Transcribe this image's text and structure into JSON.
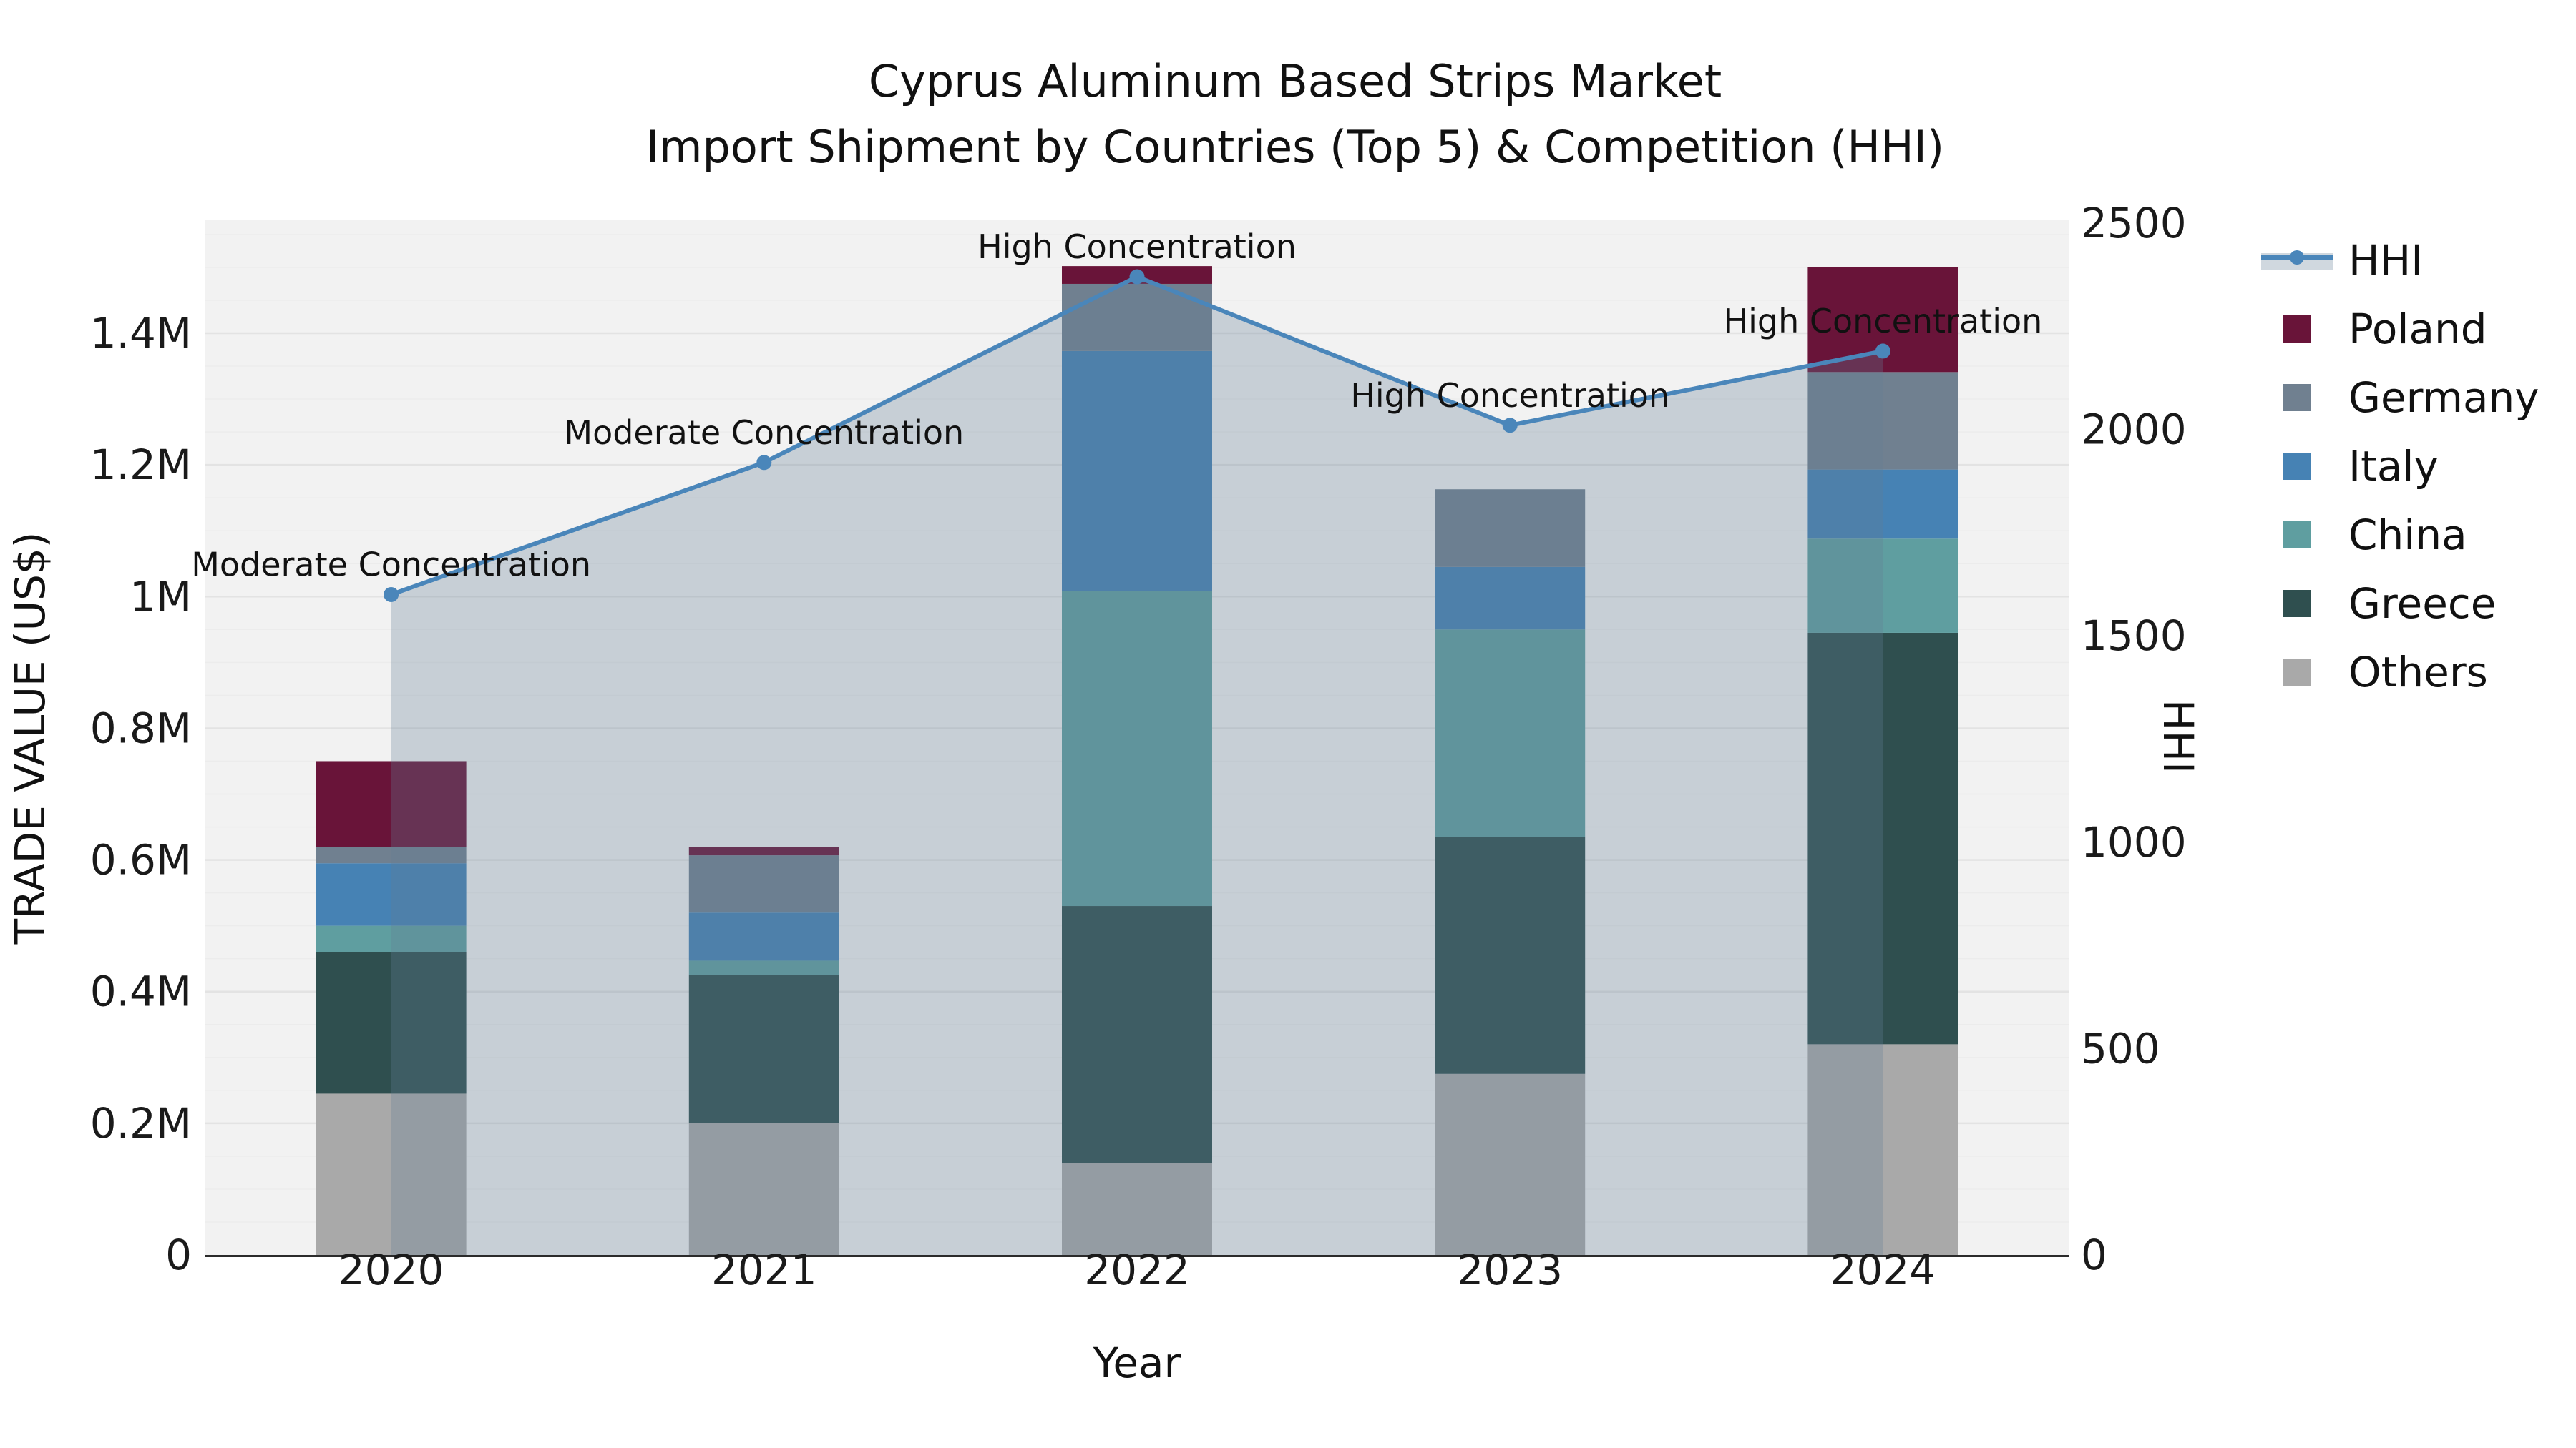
{
  "title": {
    "line1": "Cyprus Aluminum Based Strips Market",
    "line2": "Import Shipment by Countries (Top 5) & Competition (HHI)"
  },
  "axes": {
    "left": {
      "label": "TRADE VALUE (US$)",
      "unit": "M",
      "ticks": [
        {
          "value": 0.0,
          "label": "0"
        },
        {
          "value": 0.2,
          "label": "0.2M"
        },
        {
          "value": 0.4,
          "label": "0.4M"
        },
        {
          "value": 0.6,
          "label": "0.6M"
        },
        {
          "value": 0.8,
          "label": "0.8M"
        },
        {
          "value": 1.0,
          "label": "1M"
        },
        {
          "value": 1.2,
          "label": "1.2M"
        },
        {
          "value": 1.4,
          "label": "1.4M"
        }
      ]
    },
    "right": {
      "label": "HHI",
      "max": 2500,
      "ticks": [
        {
          "value": 0,
          "label": "0"
        },
        {
          "value": 500,
          "label": "500"
        },
        {
          "value": 1000,
          "label": "1000"
        },
        {
          "value": 1500,
          "label": "1500"
        },
        {
          "value": 2000,
          "label": "2000"
        },
        {
          "value": 2500,
          "label": "2500"
        }
      ]
    },
    "bottom": {
      "label": "Year"
    }
  },
  "legend": {
    "items": [
      {
        "label": "HHI",
        "type": "line",
        "color": "#4a86ba"
      },
      {
        "label": "Poland",
        "type": "swatch",
        "color": "#691439"
      },
      {
        "label": "Germany",
        "type": "swatch",
        "color": "#708090"
      },
      {
        "label": "Italy",
        "type": "swatch",
        "color": "#4682b4"
      },
      {
        "label": "China",
        "type": "swatch",
        "color": "#5f9ea0"
      },
      {
        "label": "Greece",
        "type": "swatch",
        "color": "#2f4f4f"
      },
      {
        "label": "Others",
        "type": "swatch",
        "color": "#a9a9a9"
      }
    ]
  },
  "chart_data": {
    "type": "bar",
    "stacked": true,
    "title": "Cyprus Aluminum Based Strips Market — Import Shipment by Countries (Top 5) & Competition (HHI)",
    "categories": [
      "2020",
      "2021",
      "2022",
      "2023",
      "2024"
    ],
    "xlabel": "Year",
    "ylabel_left": "TRADE VALUE (US$)",
    "ylabel_right": "HHI",
    "unit": "millions of US$",
    "ylim_left": [
      0,
      1.57
    ],
    "ylim_right": [
      0,
      2500
    ],
    "grid": true,
    "legend_position": "right",
    "series": [
      {
        "name": "Others",
        "color": "#a9a9a9",
        "values": [
          0.245,
          0.2,
          0.14,
          0.275,
          0.32
        ]
      },
      {
        "name": "Greece",
        "color": "#2f4f4f",
        "values": [
          0.215,
          0.225,
          0.39,
          0.36,
          0.625
        ]
      },
      {
        "name": "China",
        "color": "#5f9ea0",
        "values": [
          0.04,
          0.022,
          0.478,
          0.315,
          0.143
        ]
      },
      {
        "name": "Italy",
        "color": "#4682b4",
        "values": [
          0.095,
          0.073,
          0.365,
          0.095,
          0.105
        ]
      },
      {
        "name": "Germany",
        "color": "#708090",
        "values": [
          0.025,
          0.087,
          0.102,
          0.118,
          0.148
        ]
      },
      {
        "name": "Poland",
        "color": "#691439",
        "values": [
          0.13,
          0.013,
          0.027,
          0.0,
          0.16
        ]
      }
    ],
    "line_series": {
      "name": "HHI",
      "axis": "right",
      "color": "#4a86ba",
      "values": [
        1600,
        1920,
        2370,
        2010,
        2190
      ],
      "area_fill": "rgba(100,125,150,0.30)"
    },
    "annotations": [
      {
        "category": "2020",
        "text": "Moderate Concentration"
      },
      {
        "category": "2021",
        "text": "Moderate Concentration"
      },
      {
        "category": "2022",
        "text": "High Concentration"
      },
      {
        "category": "2023",
        "text": "High Concentration"
      },
      {
        "category": "2024",
        "text": "High Concentration"
      }
    ],
    "colors": {
      "plot_background": "#f2f2f2",
      "grid_major": "#e3e3e3",
      "grid_minor": "#ececec",
      "axis_line": "#2b2b2b",
      "tick_text": "#1a1a1a"
    }
  }
}
